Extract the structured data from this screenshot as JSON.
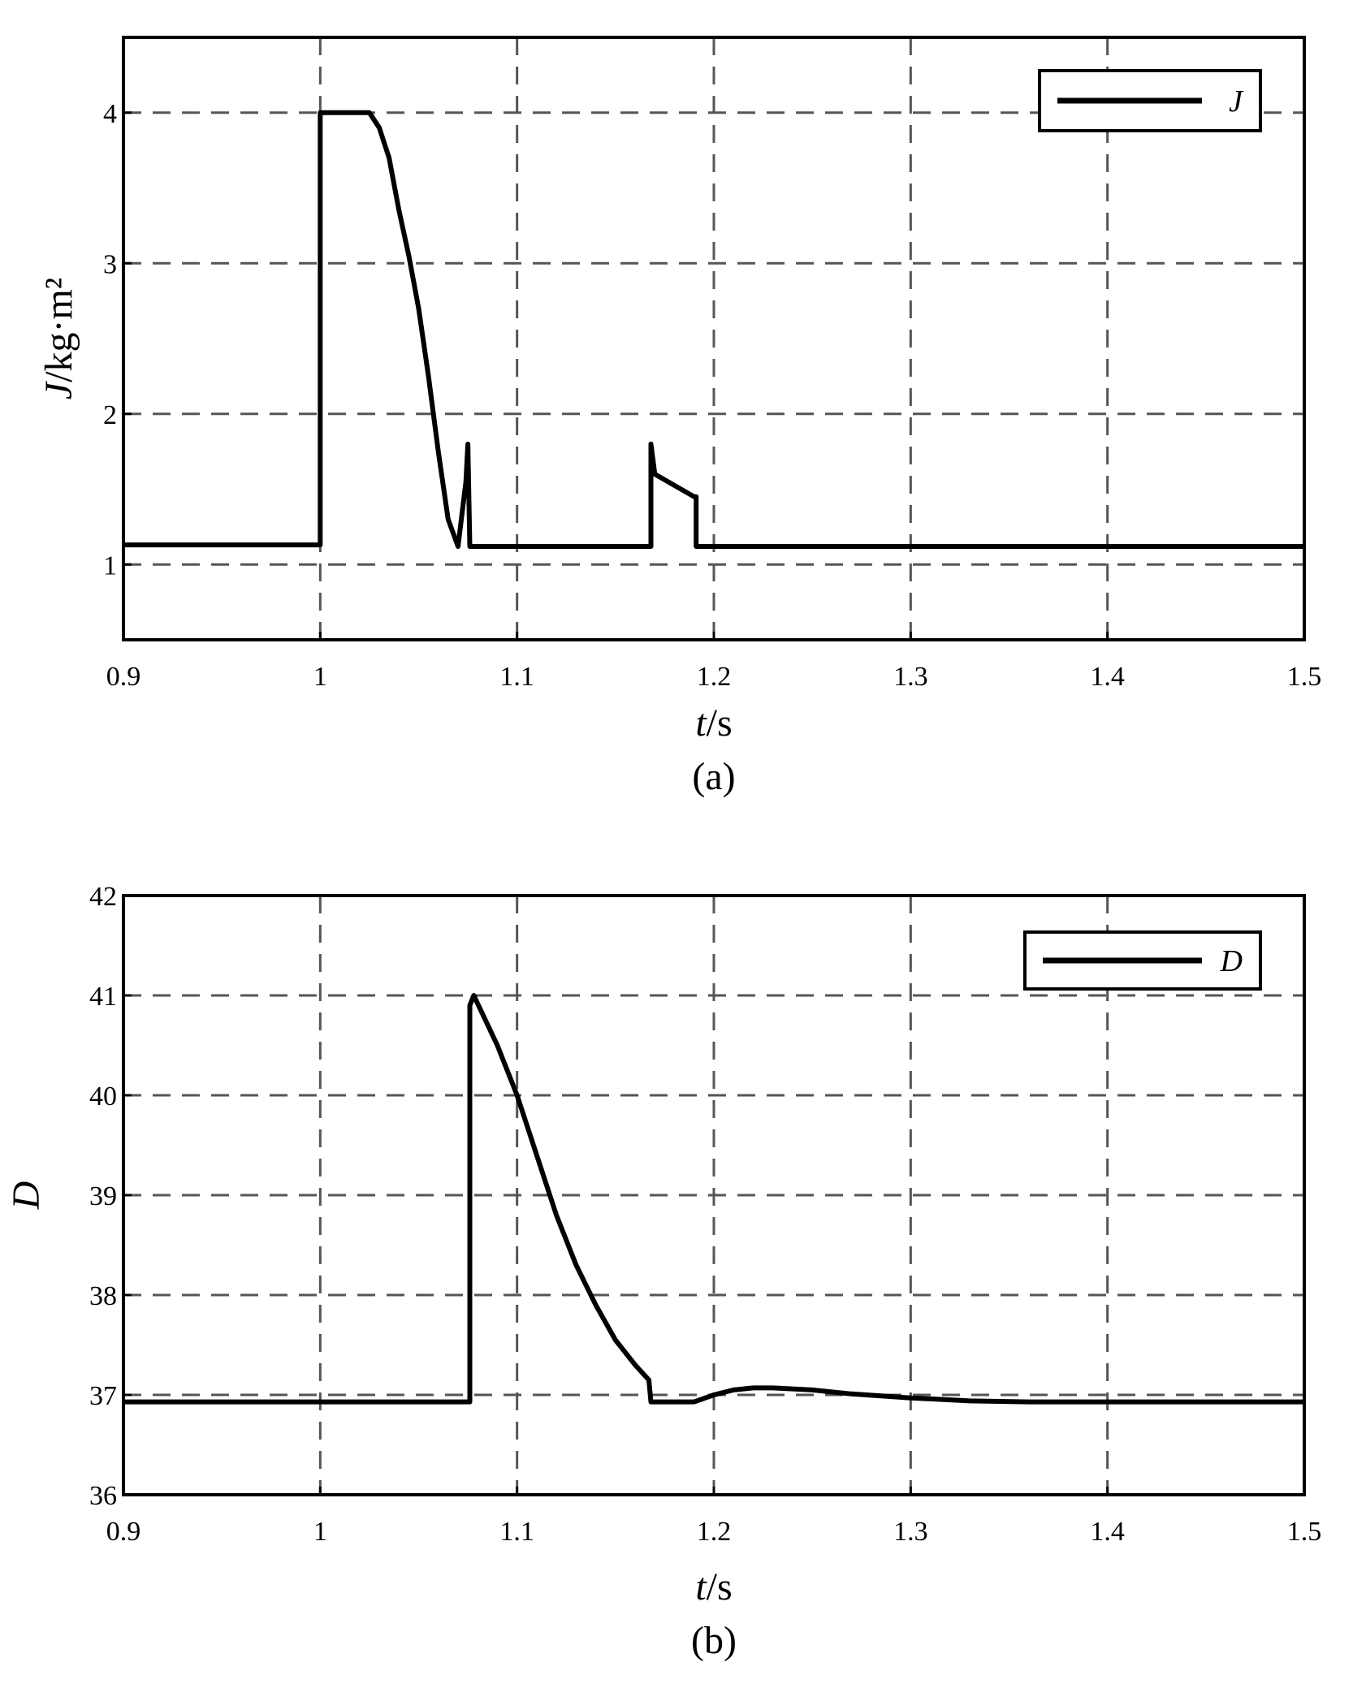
{
  "chart_data": [
    {
      "type": "line",
      "caption": "(a)",
      "xlabel_var": "t",
      "xlabel_unit": "/s",
      "ylabel_var": "J",
      "ylabel_unit": "/kg·m²",
      "xlim": [
        0.9,
        1.5
      ],
      "ylim": [
        0.5,
        4.5
      ],
      "xticks": [
        "0.9",
        "1",
        "1.1",
        "1.2",
        "1.3",
        "1.4",
        "1.5"
      ],
      "xtick_values": [
        0.9,
        1.0,
        1.1,
        1.2,
        1.3,
        1.4,
        1.5
      ],
      "yticks": [
        "1",
        "2",
        "3",
        "4"
      ],
      "ytick_values": [
        1,
        2,
        3,
        4
      ],
      "grid": true,
      "legend_position": "top-right",
      "series": [
        {
          "name": "J",
          "x": [
            0.9,
            1.0,
            1.0,
            1.025,
            1.03,
            1.035,
            1.04,
            1.045,
            1.05,
            1.055,
            1.06,
            1.065,
            1.07,
            1.074,
            1.075,
            1.076,
            1.077,
            1.168,
            1.168,
            1.17,
            1.19,
            1.191,
            1.191,
            1.5
          ],
          "y": [
            1.13,
            1.13,
            4.0,
            4.0,
            3.9,
            3.7,
            3.35,
            3.05,
            2.7,
            2.25,
            1.75,
            1.3,
            1.12,
            1.55,
            1.8,
            1.12,
            1.12,
            1.12,
            1.8,
            1.6,
            1.45,
            1.45,
            1.12,
            1.12
          ]
        }
      ]
    },
    {
      "type": "line",
      "caption": "(b)",
      "xlabel_var": "t",
      "xlabel_unit": "/s",
      "ylabel_var": "D",
      "xlim": [
        0.9,
        1.5
      ],
      "ylim": [
        36,
        42
      ],
      "xticks": [
        "0.9",
        "1",
        "1.1",
        "1.2",
        "1.3",
        "1.4",
        "1.5"
      ],
      "xtick_values": [
        0.9,
        1.0,
        1.1,
        1.2,
        1.3,
        1.4,
        1.5
      ],
      "yticks": [
        "36",
        "37",
        "38",
        "39",
        "40",
        "41",
        "42"
      ],
      "ytick_values": [
        36,
        37,
        38,
        39,
        40,
        41,
        42
      ],
      "grid": true,
      "legend_position": "top-right",
      "series": [
        {
          "name": "D",
          "x": [
            0.9,
            1.076,
            1.076,
            1.078,
            1.09,
            1.1,
            1.11,
            1.12,
            1.13,
            1.14,
            1.15,
            1.16,
            1.167,
            1.168,
            1.19,
            1.2,
            1.21,
            1.22,
            1.23,
            1.25,
            1.27,
            1.3,
            1.33,
            1.36,
            1.4,
            1.5
          ],
          "y": [
            36.93,
            36.93,
            40.9,
            41.0,
            40.5,
            40.0,
            39.4,
            38.8,
            38.3,
            37.9,
            37.55,
            37.3,
            37.15,
            36.93,
            36.93,
            37.0,
            37.05,
            37.07,
            37.07,
            37.05,
            37.01,
            36.97,
            36.94,
            36.93,
            36.93,
            36.93
          ]
        }
      ]
    }
  ]
}
